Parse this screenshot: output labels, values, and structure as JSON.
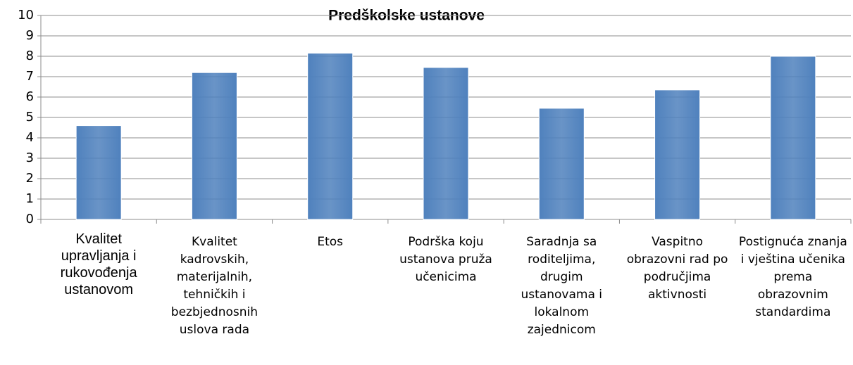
{
  "chart_data": {
    "type": "bar",
    "title": "Predškolske ustanove",
    "categories": [
      "Kvalitet upravljanja i rukovođenja ustanovom",
      "Kvalitet kadrovskih, materijalnih, tehničkih i bezbjednosnih uslova rada",
      "Etos",
      "Podrška koju ustanova pruža učenicima",
      "Saradnja sa roditeljima, drugim ustanovama i lokalnom zajednicom",
      "Vaspitno obrazovni rad po područjima aktivnosti",
      "Postignuća znanja i vještina učenika prema obrazovnim standardima"
    ],
    "values": [
      4.6,
      7.2,
      8.15,
      7.45,
      5.45,
      6.35,
      8.0
    ],
    "color": "#4f81bd",
    "ylim": [
      0,
      10
    ],
    "yticks": [
      0,
      1,
      2,
      3,
      4,
      5,
      6,
      7,
      8,
      9,
      10
    ],
    "grid": true
  }
}
